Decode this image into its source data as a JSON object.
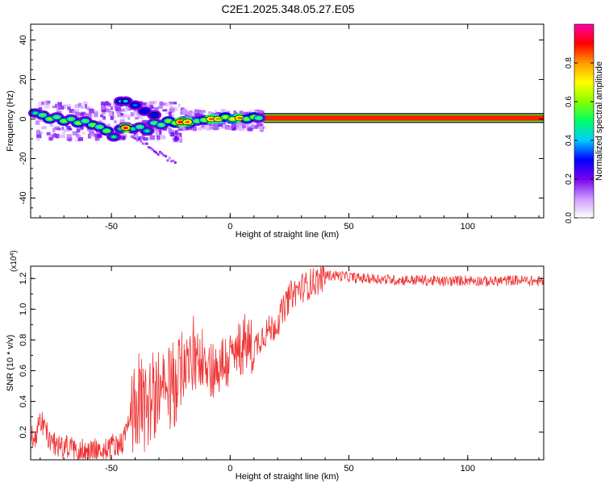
{
  "chart_data": [
    {
      "type": "heatmap",
      "title": "C2E1.2025.348.05.27.E05",
      "xlabel": "Height of straight line (km)",
      "ylabel": "Frequency (Hz)",
      "xlim": [
        -84,
        132
      ],
      "ylim": [
        -50,
        48
      ],
      "xticks": [
        -50,
        0,
        50,
        100
      ],
      "yticks": [
        -40,
        -20,
        0,
        20,
        40
      ],
      "colorbar": {
        "label": "Normalized spectral amplitude",
        "range": [
          0.0,
          1.0
        ],
        "ticks": [
          0.0,
          0.2,
          0.4,
          0.6,
          0.8
        ],
        "tick_labels": [
          "0.0",
          "0.2",
          "0.4",
          "0.6",
          "0.8"
        ],
        "colors": [
          "#ffffff",
          "#cc99ff",
          "#7700ee",
          "#0000ff",
          "#00ccff",
          "#00ff66",
          "#88ff00",
          "#ffff00",
          "#ff9900",
          "#ff0000",
          "#ff00aa"
        ]
      },
      "band": {
        "x_start": 14,
        "x_end": 132,
        "freq": 0.5,
        "halfwidth": 1.4,
        "value": 0.88
      },
      "ridge_points": [
        {
          "x": -82,
          "f": 3,
          "v": 0.5
        },
        {
          "x": -79,
          "f": 2,
          "v": 0.55
        },
        {
          "x": -76,
          "f": 0,
          "v": 0.6
        },
        {
          "x": -73,
          "f": 1,
          "v": 0.55
        },
        {
          "x": -70,
          "f": -1,
          "v": 0.6
        },
        {
          "x": -67,
          "f": 0,
          "v": 0.55
        },
        {
          "x": -64,
          "f": -2,
          "v": 0.6
        },
        {
          "x": -61,
          "f": -1,
          "v": 0.55
        },
        {
          "x": -58,
          "f": -3,
          "v": 0.6
        },
        {
          "x": -55,
          "f": -4,
          "v": 0.55
        },
        {
          "x": -52,
          "f": -6,
          "v": 0.6
        },
        {
          "x": -49,
          "f": -9,
          "v": 0.5
        },
        {
          "x": -46,
          "f": -5,
          "v": 0.5
        },
        {
          "x": -44,
          "f": -4,
          "v": 0.55
        },
        {
          "x": -41,
          "f": -5,
          "v": 0.5
        },
        {
          "x": -38,
          "f": -4,
          "v": 0.55
        },
        {
          "x": -35,
          "f": -6,
          "v": 0.5
        },
        {
          "x": -32,
          "f": -2,
          "v": 0.55
        },
        {
          "x": -29,
          "f": -3,
          "v": 0.55
        },
        {
          "x": -26,
          "f": -1,
          "v": 0.6
        },
        {
          "x": -23,
          "f": -2,
          "v": 0.65
        },
        {
          "x": -20,
          "f": -1,
          "v": 0.7
        },
        {
          "x": -17,
          "f": -2,
          "v": 0.6
        },
        {
          "x": -14,
          "f": -1,
          "v": 0.55
        },
        {
          "x": -11,
          "f": -0.5,
          "v": 0.6
        },
        {
          "x": -8,
          "f": 0,
          "v": 0.85
        },
        {
          "x": -5,
          "f": 0,
          "v": 0.8
        },
        {
          "x": -2,
          "f": 1,
          "v": 0.65
        },
        {
          "x": 1,
          "f": 0,
          "v": 0.7
        },
        {
          "x": 4,
          "f": 0.5,
          "v": 0.85
        },
        {
          "x": 7,
          "f": 0,
          "v": 0.6
        },
        {
          "x": 10,
          "f": 1,
          "v": 0.65
        },
        {
          "x": 12,
          "f": 0.5,
          "v": 0.55
        },
        {
          "x": -46,
          "f": 9,
          "v": 0.45
        },
        {
          "x": -44,
          "f": 9,
          "v": 0.45
        },
        {
          "x": -40,
          "f": 7,
          "v": 0.35
        },
        {
          "x": -36,
          "f": 4,
          "v": 0.3
        },
        {
          "x": -32,
          "f": 2,
          "v": 0.3
        },
        {
          "x": -44,
          "f": -4.5,
          "v": 0.9
        },
        {
          "x": -21,
          "f": -1.5,
          "v": 0.9
        },
        {
          "x": -18,
          "f": -1.5,
          "v": 0.85
        }
      ]
    },
    {
      "type": "line",
      "xlabel": "Height of straight line (km)",
      "ylabel": "SNR (10 * v/v)",
      "y_exponent_label": "(x10",
      "y_exponent_power": "4",
      "y_exponent_close": ")",
      "xlim": [
        -84,
        132
      ],
      "ylim": [
        0.02,
        1.28
      ],
      "xticks": [
        -50,
        0,
        50,
        100
      ],
      "yticks": [
        0.2,
        0.4,
        0.6,
        0.8,
        1.0,
        1.2
      ],
      "ytick_labels": [
        "0.2",
        "0.4",
        "0.6",
        "0.8",
        "1.0",
        "1.2"
      ],
      "color": "#ee3333",
      "series": [
        {
          "name": "SNR",
          "x": [
            -84,
            -82,
            -80,
            -78,
            -76,
            -74,
            -72,
            -70,
            -68,
            -66,
            -64,
            -62,
            -60,
            -58,
            -56,
            -54,
            -52,
            -50,
            -48,
            -46,
            -44,
            -42,
            -40,
            -38,
            -36,
            -34,
            -32,
            -30,
            -28,
            -26,
            -24,
            -22,
            -20,
            -18,
            -16,
            -14,
            -12,
            -10,
            -8,
            -6,
            -4,
            -2,
            0,
            2,
            4,
            6,
            8,
            10,
            12,
            14,
            16,
            18,
            20,
            22,
            24,
            26,
            28,
            30,
            32,
            34,
            36,
            38,
            40,
            45,
            50,
            55,
            60,
            70,
            80,
            90,
            100,
            110,
            120,
            132
          ],
          "values": [
            0.18,
            0.17,
            0.28,
            0.22,
            0.14,
            0.13,
            0.11,
            0.1,
            0.11,
            0.09,
            0.08,
            0.09,
            0.07,
            0.08,
            0.08,
            0.07,
            0.09,
            0.11,
            0.13,
            0.12,
            0.18,
            0.28,
            0.38,
            0.42,
            0.36,
            0.4,
            0.44,
            0.48,
            0.42,
            0.46,
            0.5,
            0.52,
            0.62,
            0.66,
            0.64,
            0.66,
            0.7,
            0.68,
            0.62,
            0.6,
            0.64,
            0.66,
            0.66,
            0.7,
            0.74,
            0.78,
            0.76,
            0.74,
            0.8,
            0.84,
            0.86,
            0.88,
            0.92,
            0.98,
            1.05,
            1.1,
            1.12,
            1.14,
            1.15,
            1.17,
            1.18,
            1.2,
            1.22,
            1.22,
            1.21,
            1.2,
            1.2,
            1.19,
            1.19,
            1.18,
            1.19,
            1.18,
            1.19,
            1.18
          ]
        }
      ],
      "noise_amplitude": [
        {
          "x_start": -84,
          "x_end": -42,
          "amp": 0.08
        },
        {
          "x_start": -42,
          "x_end": -20,
          "amp": 0.3
        },
        {
          "x_start": -20,
          "x_end": 10,
          "amp": 0.2
        },
        {
          "x_start": 10,
          "x_end": 40,
          "amp": 0.1
        },
        {
          "x_start": 40,
          "x_end": 132,
          "amp": 0.035
        }
      ]
    }
  ]
}
